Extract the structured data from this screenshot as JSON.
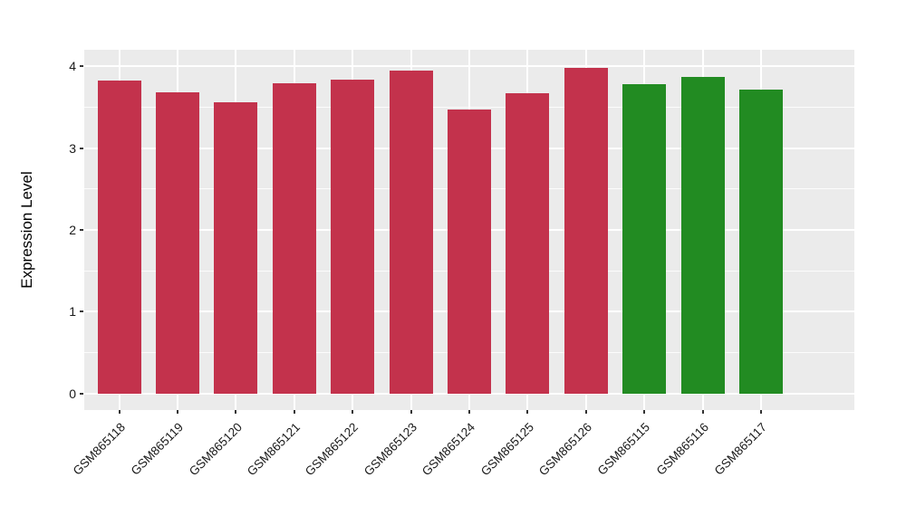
{
  "chart_data": {
    "type": "bar",
    "title": "",
    "xlabel": "",
    "ylabel": "Expression Level",
    "categories": [
      "GSM865118",
      "GSM865119",
      "GSM865120",
      "GSM865121",
      "GSM865122",
      "GSM865123",
      "GSM865124",
      "GSM865125",
      "GSM865126",
      "GSM865115",
      "GSM865116",
      "GSM865117"
    ],
    "values": [
      3.82,
      3.68,
      3.56,
      3.79,
      3.83,
      3.95,
      3.47,
      3.67,
      3.98,
      3.78,
      3.87,
      3.71
    ],
    "bar_colors": [
      "#C3324C",
      "#C3324C",
      "#C3324C",
      "#C3324C",
      "#C3324C",
      "#C3324C",
      "#C3324C",
      "#C3324C",
      "#C3324C",
      "#228B22",
      "#228B22",
      "#228B22"
    ],
    "palette": {
      "red_group": "#C3324C",
      "green_group": "#228B22"
    },
    "ytick_labels": [
      "0",
      "1",
      "2",
      "3",
      "4"
    ],
    "ytick_values": [
      0,
      1,
      2,
      3,
      4
    ],
    "ylim": [
      -0.2,
      4.2
    ],
    "grid": true,
    "legend": "none",
    "panel_background": "#EBEBEB",
    "grid_color": "#FFFFFF",
    "tick_color": "#333333"
  }
}
